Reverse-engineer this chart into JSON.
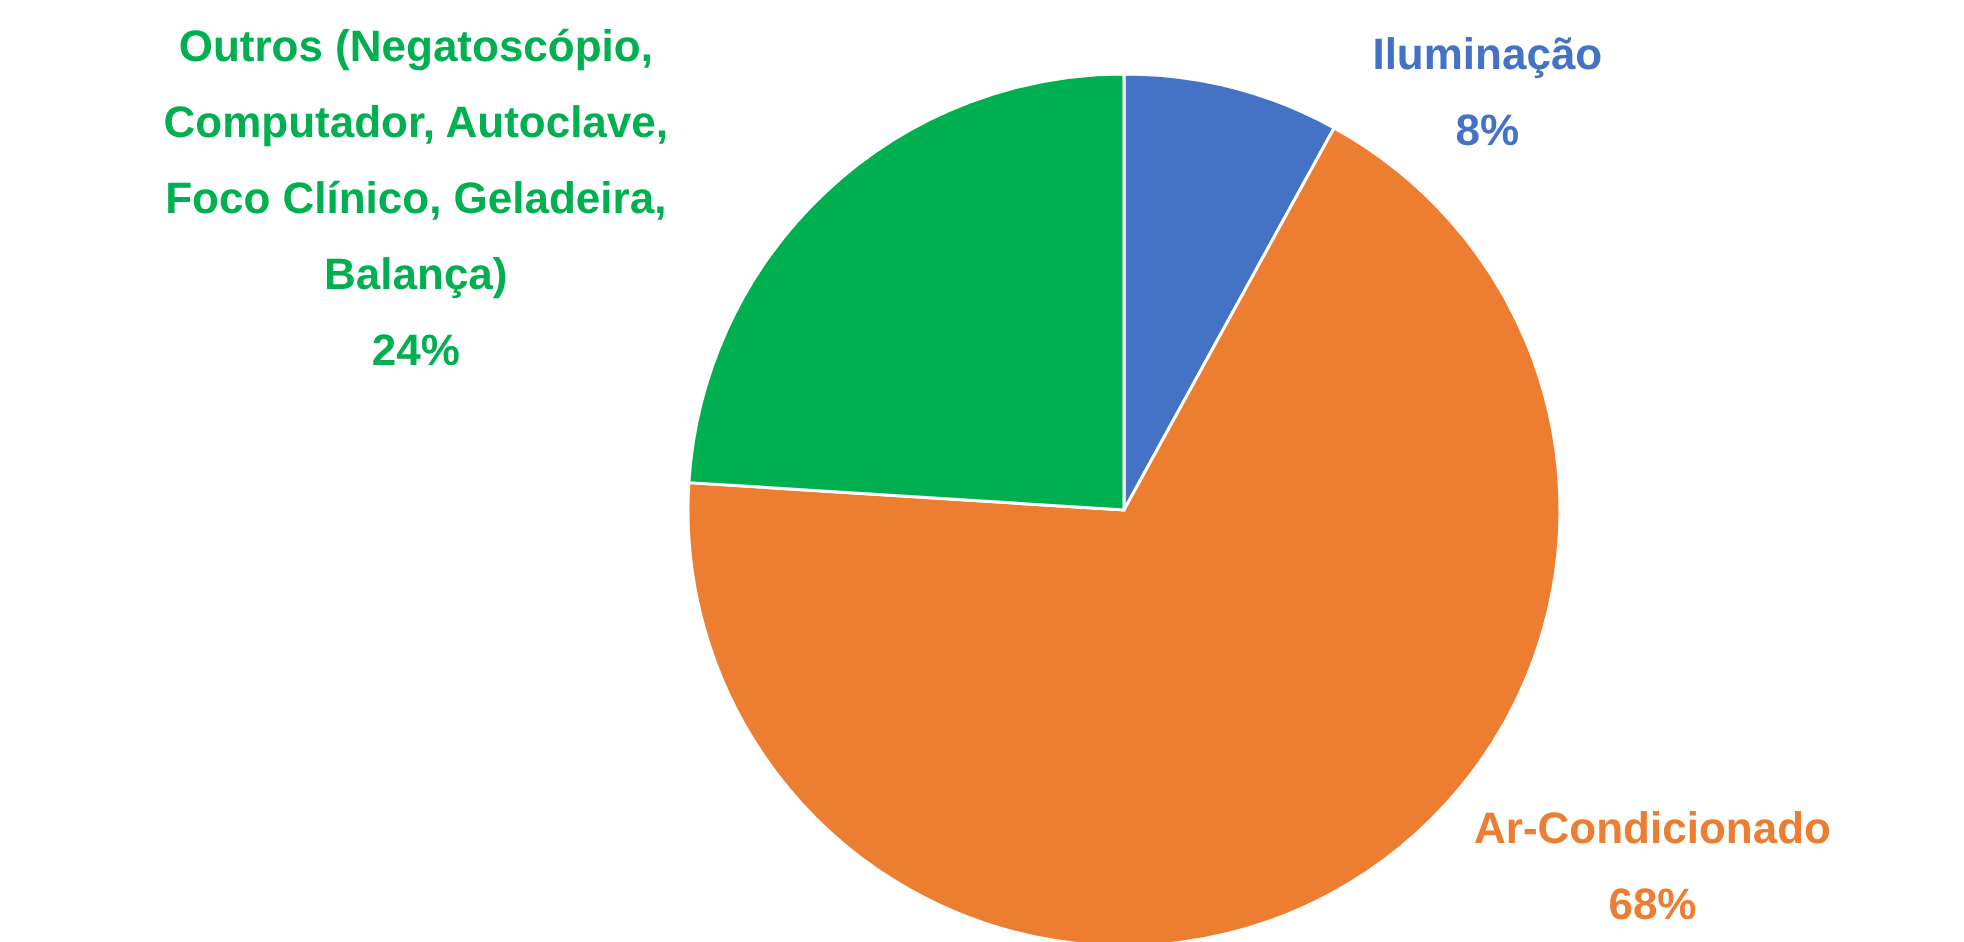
{
  "chart_data": {
    "type": "pie",
    "categories": [
      "Iluminação",
      "Ar-Condicionado",
      "Outros (Negatoscópio, Computador, Autoclave, Foco Clínico, Geladeira, Balança)"
    ],
    "values": [
      8,
      68,
      24
    ],
    "value_labels": [
      "8%",
      "68%",
      "24%"
    ],
    "colors": [
      "#4472c4",
      "#ed7d31",
      "#00b050"
    ],
    "legend": false
  }
}
